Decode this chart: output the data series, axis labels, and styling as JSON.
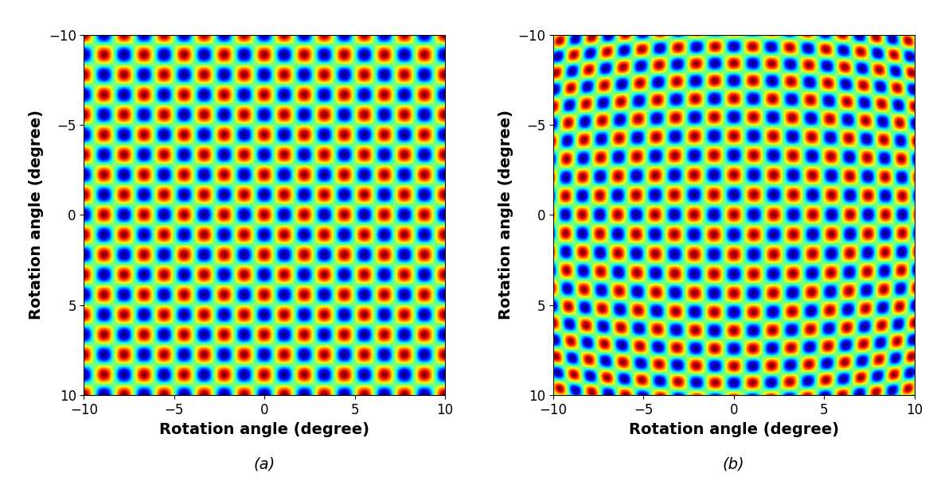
{
  "xlim": [
    -10,
    10
  ],
  "ylim": [
    -10,
    10
  ],
  "xlabel": "Rotation angle (degree)",
  "ylabel": "Rotation angle (degree)",
  "xlabel_fontsize": 14,
  "ylabel_fontsize": 14,
  "tick_fontsize": 12,
  "label_a": "(a)",
  "label_b": "(b)",
  "label_fontsize": 14,
  "xticks": [
    -10,
    -5,
    0,
    5,
    10
  ],
  "yticks": [
    -10,
    -5,
    0,
    5,
    10
  ],
  "background_color": "#ffffff",
  "grid_resolution": 600,
  "period_deg": 2.22,
  "distortion_k": 0.0008
}
